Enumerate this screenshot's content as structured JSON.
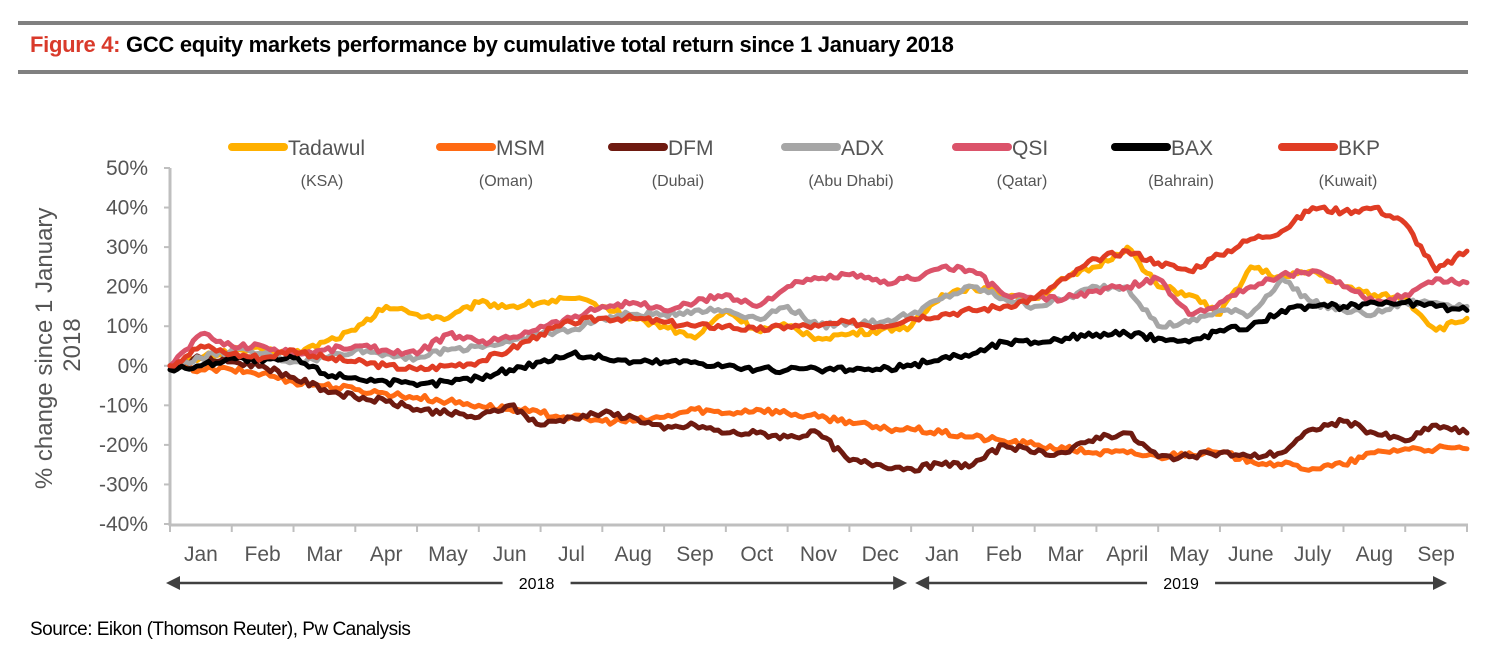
{
  "header": {
    "figure_number": "Figure 4:",
    "title": "GCC equity markets performance by cumulative total return since 1 January 2018"
  },
  "footer": {
    "source": "Source: Eikon (Thomson Reuter), Pw Canalysis"
  },
  "colors": {
    "Tadawul": "#FFB000",
    "MSM": "#FF6A13",
    "DFM": "#6E1A10",
    "ADX": "#A6A6A6",
    "QSI": "#DB536A",
    "BAX": "#000000",
    "BKP": "#E03C24",
    "axis": "#BFBFBF",
    "text": "#555555",
    "rule": "#808080",
    "accent": "#D93A2B"
  },
  "chart_data": {
    "type": "line",
    "title": "GCC equity markets performance by cumulative total return since 1 January 2018",
    "xlabel": "",
    "ylabel": "% change since 1 January 2018",
    "ylim": [
      -40,
      50
    ],
    "yticks": [
      -40,
      -30,
      -20,
      -10,
      0,
      10,
      20,
      30,
      40,
      50
    ],
    "ytick_labels": [
      "-40%",
      "-30%",
      "-20%",
      "-10%",
      "0%",
      "10%",
      "20%",
      "30%",
      "40%",
      "50%"
    ],
    "xlim_months": [
      0,
      21
    ],
    "x_unit": "months since 1 January 2018 (sampled twice monthly)",
    "month_labels": [
      "Jan",
      "Feb",
      "Mar",
      "Apr",
      "May",
      "Jun",
      "Jul",
      "Aug",
      "Sep",
      "Oct",
      "Nov",
      "Dec",
      "Jan",
      "Feb",
      "Mar",
      "April",
      "May",
      "June",
      "July",
      "Aug",
      "Sep"
    ],
    "year_bands": [
      {
        "label": "2018",
        "from_month": 0,
        "to_month": 12
      },
      {
        "label": "2019",
        "from_month": 12,
        "to_month": 21
      }
    ],
    "grid": false,
    "legend_position": "top",
    "x": [
      0,
      0.5,
      1,
      1.5,
      2,
      2.5,
      3,
      3.5,
      4,
      4.5,
      5,
      5.5,
      6,
      6.5,
      7,
      7.5,
      8,
      8.5,
      9,
      9.5,
      10,
      10.5,
      11,
      11.5,
      12,
      12.5,
      13,
      13.5,
      14,
      14.5,
      15,
      15.5,
      16,
      16.5,
      17,
      17.5,
      18,
      18.5,
      19,
      19.5,
      20,
      20.5,
      21
    ],
    "series": [
      {
        "name": "Tadawul",
        "sub": "(KSA)",
        "values": [
          0,
          2,
          4,
          4,
          3,
          6,
          9,
          15,
          13,
          12,
          16,
          15,
          16,
          17,
          15,
          12,
          10,
          7,
          14,
          9,
          10,
          7,
          8,
          9,
          10,
          18,
          20,
          18,
          17,
          22,
          25,
          30,
          20,
          18,
          13,
          25,
          22,
          24,
          20,
          18,
          17,
          9,
          12
        ]
      },
      {
        "name": "MSM",
        "sub": "(Oman)",
        "values": [
          0,
          -1,
          -1,
          -2,
          -4,
          -5,
          -6,
          -7,
          -8,
          -9,
          -10,
          -11,
          -12,
          -13,
          -14,
          -14,
          -13,
          -11,
          -12,
          -11,
          -12,
          -13,
          -14,
          -16,
          -16,
          -17,
          -18,
          -19,
          -20,
          -21,
          -22,
          -22,
          -23,
          -22,
          -22,
          -24,
          -25,
          -26,
          -25,
          -22,
          -21,
          -21,
          -21
        ]
      },
      {
        "name": "DFM",
        "sub": "(Dubai)",
        "values": [
          0,
          2,
          1,
          0,
          -3,
          -6,
          -8,
          -9,
          -11,
          -12,
          -13,
          -10,
          -15,
          -13,
          -12,
          -13,
          -16,
          -15,
          -17,
          -17,
          -18,
          -17,
          -24,
          -25,
          -26,
          -25,
          -25,
          -20,
          -22,
          -22,
          -18,
          -17,
          -23,
          -23,
          -22,
          -23,
          -22,
          -16,
          -14,
          -17,
          -19,
          -15,
          -17
        ]
      },
      {
        "name": "ADX",
        "sub": "(Abu Dhabi)",
        "values": [
          0,
          2,
          4,
          3,
          1,
          2,
          4,
          3,
          2,
          4,
          5,
          6,
          8,
          9,
          12,
          13,
          13,
          14,
          14,
          12,
          15,
          10,
          11,
          11,
          13,
          17,
          20,
          17,
          15,
          17,
          20,
          20,
          10,
          11,
          14,
          13,
          22,
          16,
          14,
          13,
          16,
          16,
          15
        ]
      },
      {
        "name": "QSI",
        "sub": "(Qatar)",
        "values": [
          0,
          8,
          5,
          5,
          3,
          4,
          5,
          4,
          3,
          8,
          6,
          7,
          10,
          12,
          15,
          16,
          14,
          16,
          18,
          15,
          20,
          22,
          23,
          21,
          22,
          25,
          24,
          18,
          17,
          17,
          19,
          20,
          22,
          13,
          16,
          20,
          23,
          24,
          20,
          16,
          18,
          22,
          21
        ]
      },
      {
        "name": "BAX",
        "sub": "(Bahrain)",
        "values": [
          -1,
          0,
          2,
          1,
          2,
          -2,
          -3,
          -4,
          -5,
          -4,
          -3,
          -1,
          1,
          3,
          2,
          1,
          1,
          1,
          0,
          -1,
          -1,
          -1,
          -1,
          -1,
          0,
          2,
          3,
          6,
          6,
          7,
          8,
          8,
          7,
          6,
          9,
          10,
          14,
          15,
          15,
          16,
          16,
          15,
          14
        ]
      },
      {
        "name": "BKP",
        "sub": "(Kuwait)",
        "values": [
          0,
          5,
          3,
          2,
          4,
          2,
          1,
          0,
          -1,
          0,
          1,
          4,
          8,
          11,
          12,
          12,
          11,
          10,
          10,
          9,
          10,
          10,
          11,
          10,
          12,
          13,
          14,
          15,
          17,
          22,
          27,
          29,
          26,
          24,
          28,
          32,
          34,
          40,
          39,
          40,
          36,
          24,
          29
        ]
      }
    ]
  }
}
